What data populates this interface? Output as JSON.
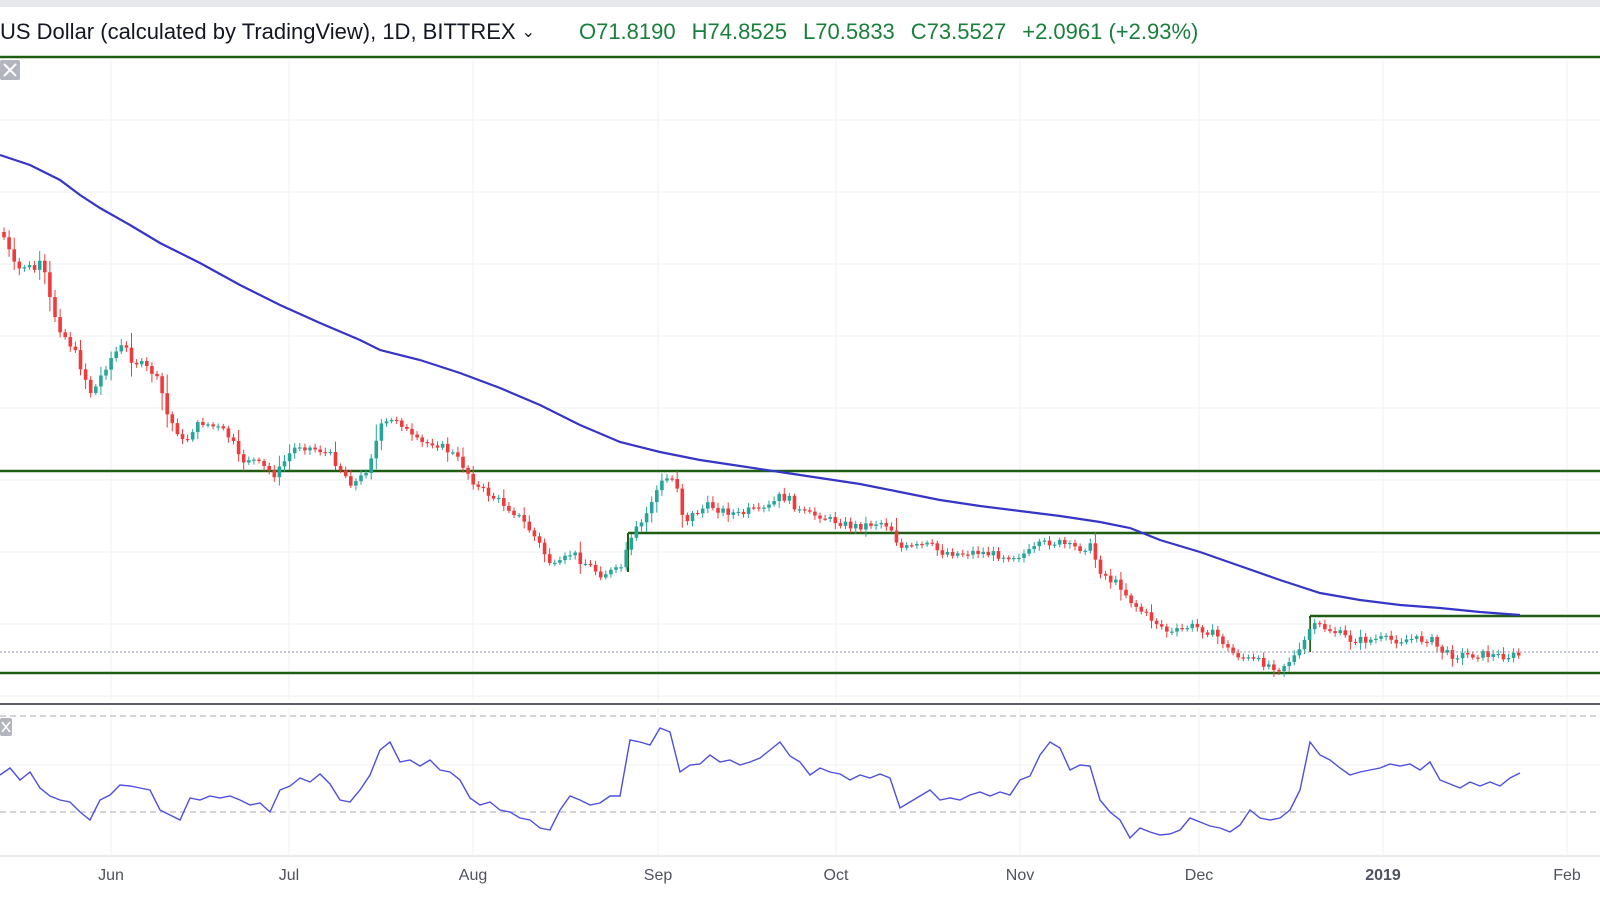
{
  "header": {
    "symbol_text": "US Dollar (calculated by TradingView), 1D, BITTREX",
    "caret_icon": "chevron-down-icon",
    "open": "O71.8190",
    "high": "H74.8525",
    "low": "L70.5833",
    "close": "C73.5527",
    "change": "+2.0961 (+2.93%)"
  },
  "chart_data": {
    "type": "candlestick",
    "title": "",
    "xlabel": "",
    "ylabel": "",
    "x_ticks": [
      "Jun",
      "Jul",
      "Aug",
      "Sep",
      "Oct",
      "Nov",
      "Dec",
      "2019",
      "Feb"
    ],
    "moving_average_color": "#3535c7",
    "horizontal_lines_color": "#1e5d12",
    "up_color": "#26a69a",
    "down_color": "#ef3b3b",
    "oscillator_color": "#4e4ee0",
    "close_path": [
      [
        0,
        232
      ],
      [
        6,
        240
      ],
      [
        12,
        262
      ],
      [
        18,
        270
      ],
      [
        26,
        265
      ],
      [
        34,
        270
      ],
      [
        42,
        262
      ],
      [
        50,
        300
      ],
      [
        58,
        325
      ],
      [
        66,
        338
      ],
      [
        74,
        350
      ],
      [
        84,
        375
      ],
      [
        92,
        395
      ],
      [
        100,
        378
      ],
      [
        108,
        362
      ],
      [
        116,
        352
      ],
      [
        124,
        345
      ],
      [
        132,
        360
      ],
      [
        142,
        365
      ],
      [
        152,
        372
      ],
      [
        160,
        385
      ],
      [
        168,
        418
      ],
      [
        176,
        428
      ],
      [
        184,
        445
      ],
      [
        192,
        430
      ],
      [
        202,
        422
      ],
      [
        212,
        426
      ],
      [
        222,
        430
      ],
      [
        232,
        440
      ],
      [
        240,
        462
      ],
      [
        250,
        458
      ],
      [
        260,
        465
      ],
      [
        268,
        470
      ],
      [
        276,
        475
      ],
      [
        284,
        462
      ],
      [
        292,
        450
      ],
      [
        300,
        445
      ],
      [
        310,
        448
      ],
      [
        320,
        450
      ],
      [
        330,
        455
      ],
      [
        340,
        468
      ],
      [
        350,
        482
      ],
      [
        358,
        482
      ],
      [
        366,
        470
      ],
      [
        374,
        448
      ],
      [
        382,
        425
      ],
      [
        390,
        422
      ],
      [
        398,
        418
      ],
      [
        406,
        430
      ],
      [
        414,
        440
      ],
      [
        424,
        444
      ],
      [
        434,
        442
      ],
      [
        444,
        448
      ],
      [
        454,
        455
      ],
      [
        462,
        464
      ],
      [
        470,
        476
      ],
      [
        478,
        488
      ],
      [
        486,
        492
      ],
      [
        494,
        498
      ],
      [
        504,
        504
      ],
      [
        514,
        512
      ],
      [
        522,
        520
      ],
      [
        532,
        533
      ],
      [
        540,
        545
      ],
      [
        548,
        560
      ],
      [
        556,
        568
      ],
      [
        564,
        560
      ],
      [
        572,
        552
      ],
      [
        580,
        560
      ],
      [
        590,
        566
      ],
      [
        600,
        574
      ],
      [
        610,
        572
      ],
      [
        620,
        570
      ],
      [
        628,
        548
      ],
      [
        636,
        530
      ],
      [
        644,
        520
      ],
      [
        652,
        500
      ],
      [
        660,
        484
      ],
      [
        668,
        478
      ],
      [
        676,
        480
      ],
      [
        684,
        522
      ],
      [
        692,
        515
      ],
      [
        700,
        510
      ],
      [
        710,
        505
      ],
      [
        720,
        510
      ],
      [
        730,
        512
      ],
      [
        740,
        515
      ],
      [
        750,
        510
      ],
      [
        760,
        512
      ],
      [
        770,
        506
      ],
      [
        780,
        496
      ],
      [
        790,
        500
      ],
      [
        800,
        512
      ],
      [
        810,
        515
      ],
      [
        820,
        515
      ],
      [
        830,
        520
      ],
      [
        840,
        522
      ],
      [
        850,
        526
      ],
      [
        860,
        526
      ],
      [
        870,
        524
      ],
      [
        880,
        522
      ],
      [
        890,
        526
      ],
      [
        900,
        548
      ],
      [
        910,
        548
      ],
      [
        920,
        546
      ],
      [
        930,
        545
      ],
      [
        940,
        552
      ],
      [
        950,
        552
      ],
      [
        960,
        554
      ],
      [
        970,
        552
      ],
      [
        980,
        552
      ],
      [
        990,
        554
      ],
      [
        1000,
        555
      ],
      [
        1010,
        556
      ],
      [
        1020,
        555
      ],
      [
        1030,
        552
      ],
      [
        1040,
        545
      ],
      [
        1050,
        542
      ],
      [
        1060,
        543
      ],
      [
        1070,
        547
      ],
      [
        1080,
        548
      ],
      [
        1090,
        546
      ],
      [
        1100,
        570
      ],
      [
        1110,
        580
      ],
      [
        1120,
        585
      ],
      [
        1130,
        600
      ],
      [
        1140,
        610
      ],
      [
        1150,
        618
      ],
      [
        1160,
        625
      ],
      [
        1170,
        634
      ],
      [
        1180,
        630
      ],
      [
        1190,
        626
      ],
      [
        1200,
        628
      ],
      [
        1210,
        632
      ],
      [
        1220,
        638
      ],
      [
        1230,
        652
      ],
      [
        1240,
        656
      ],
      [
        1250,
        660
      ],
      [
        1260,
        662
      ],
      [
        1270,
        665
      ],
      [
        1280,
        668
      ],
      [
        1290,
        660
      ],
      [
        1300,
        652
      ],
      [
        1310,
        628
      ],
      [
        1320,
        626
      ],
      [
        1330,
        630
      ],
      [
        1340,
        634
      ],
      [
        1350,
        640
      ],
      [
        1360,
        640
      ],
      [
        1370,
        640
      ],
      [
        1380,
        639
      ],
      [
        1390,
        640
      ],
      [
        1400,
        640
      ],
      [
        1410,
        639
      ],
      [
        1420,
        640
      ],
      [
        1430,
        638
      ],
      [
        1440,
        650
      ],
      [
        1450,
        655
      ],
      [
        1460,
        655
      ],
      [
        1470,
        655
      ],
      [
        1480,
        654
      ],
      [
        1490,
        655
      ],
      [
        1500,
        656
      ],
      [
        1510,
        656
      ],
      [
        1520,
        655
      ]
    ],
    "ma_path": [
      [
        0,
        155
      ],
      [
        30,
        165
      ],
      [
        60,
        180
      ],
      [
        80,
        195
      ],
      [
        100,
        208
      ],
      [
        130,
        225
      ],
      [
        160,
        243
      ],
      [
        200,
        263
      ],
      [
        240,
        285
      ],
      [
        280,
        305
      ],
      [
        320,
        323
      ],
      [
        360,
        340
      ],
      [
        380,
        350
      ],
      [
        420,
        360
      ],
      [
        460,
        373
      ],
      [
        500,
        388
      ],
      [
        540,
        405
      ],
      [
        580,
        425
      ],
      [
        620,
        442
      ],
      [
        660,
        452
      ],
      [
        700,
        460
      ],
      [
        740,
        466
      ],
      [
        780,
        472
      ],
      [
        820,
        478
      ],
      [
        860,
        484
      ],
      [
        900,
        492
      ],
      [
        940,
        500
      ],
      [
        980,
        506
      ],
      [
        1020,
        511
      ],
      [
        1060,
        516
      ],
      [
        1100,
        522
      ],
      [
        1130,
        528
      ],
      [
        1160,
        540
      ],
      [
        1200,
        552
      ],
      [
        1240,
        566
      ],
      [
        1280,
        580
      ],
      [
        1320,
        593
      ],
      [
        1360,
        600
      ],
      [
        1400,
        605
      ],
      [
        1440,
        608
      ],
      [
        1480,
        612
      ],
      [
        1520,
        615
      ]
    ],
    "oscillator_path": [
      [
        0,
        775
      ],
      [
        10,
        768
      ],
      [
        20,
        780
      ],
      [
        30,
        772
      ],
      [
        40,
        788
      ],
      [
        50,
        796
      ],
      [
        60,
        800
      ],
      [
        70,
        802
      ],
      [
        80,
        812
      ],
      [
        90,
        820
      ],
      [
        100,
        800
      ],
      [
        110,
        795
      ],
      [
        120,
        785
      ],
      [
        130,
        786
      ],
      [
        140,
        788
      ],
      [
        150,
        790
      ],
      [
        160,
        810
      ],
      [
        170,
        815
      ],
      [
        180,
        820
      ],
      [
        190,
        798
      ],
      [
        200,
        800
      ],
      [
        210,
        796
      ],
      [
        220,
        798
      ],
      [
        230,
        796
      ],
      [
        240,
        800
      ],
      [
        250,
        805
      ],
      [
        260,
        803
      ],
      [
        270,
        812
      ],
      [
        280,
        790
      ],
      [
        290,
        786
      ],
      [
        300,
        778
      ],
      [
        310,
        782
      ],
      [
        320,
        774
      ],
      [
        330,
        784
      ],
      [
        340,
        800
      ],
      [
        350,
        802
      ],
      [
        360,
        790
      ],
      [
        370,
        775
      ],
      [
        380,
        750
      ],
      [
        390,
        742
      ],
      [
        400,
        762
      ],
      [
        410,
        760
      ],
      [
        420,
        766
      ],
      [
        430,
        760
      ],
      [
        440,
        770
      ],
      [
        450,
        772
      ],
      [
        460,
        780
      ],
      [
        470,
        798
      ],
      [
        480,
        805
      ],
      [
        490,
        802
      ],
      [
        500,
        810
      ],
      [
        510,
        812
      ],
      [
        520,
        818
      ],
      [
        530,
        820
      ],
      [
        540,
        828
      ],
      [
        550,
        830
      ],
      [
        560,
        810
      ],
      [
        570,
        796
      ],
      [
        580,
        800
      ],
      [
        590,
        805
      ],
      [
        600,
        803
      ],
      [
        610,
        796
      ],
      [
        620,
        796
      ],
      [
        630,
        740
      ],
      [
        640,
        742
      ],
      [
        650,
        745
      ],
      [
        660,
        728
      ],
      [
        670,
        732
      ],
      [
        680,
        772
      ],
      [
        690,
        765
      ],
      [
        700,
        764
      ],
      [
        710,
        755
      ],
      [
        720,
        762
      ],
      [
        730,
        760
      ],
      [
        740,
        765
      ],
      [
        750,
        762
      ],
      [
        760,
        758
      ],
      [
        770,
        750
      ],
      [
        780,
        742
      ],
      [
        790,
        756
      ],
      [
        800,
        762
      ],
      [
        810,
        775
      ],
      [
        820,
        768
      ],
      [
        830,
        772
      ],
      [
        840,
        774
      ],
      [
        850,
        780
      ],
      [
        860,
        775
      ],
      [
        870,
        778
      ],
      [
        880,
        774
      ],
      [
        890,
        778
      ],
      [
        900,
        808
      ],
      [
        910,
        802
      ],
      [
        920,
        796
      ],
      [
        930,
        790
      ],
      [
        940,
        800
      ],
      [
        950,
        798
      ],
      [
        960,
        800
      ],
      [
        970,
        795
      ],
      [
        980,
        792
      ],
      [
        990,
        796
      ],
      [
        1000,
        792
      ],
      [
        1010,
        795
      ],
      [
        1020,
        780
      ],
      [
        1030,
        776
      ],
      [
        1040,
        755
      ],
      [
        1050,
        742
      ],
      [
        1060,
        748
      ],
      [
        1070,
        770
      ],
      [
        1080,
        765
      ],
      [
        1090,
        766
      ],
      [
        1100,
        800
      ],
      [
        1110,
        812
      ],
      [
        1120,
        820
      ],
      [
        1130,
        838
      ],
      [
        1140,
        828
      ],
      [
        1150,
        832
      ],
      [
        1160,
        835
      ],
      [
        1170,
        834
      ],
      [
        1180,
        830
      ],
      [
        1190,
        818
      ],
      [
        1200,
        822
      ],
      [
        1210,
        826
      ],
      [
        1220,
        828
      ],
      [
        1230,
        832
      ],
      [
        1240,
        825
      ],
      [
        1250,
        810
      ],
      [
        1260,
        818
      ],
      [
        1270,
        820
      ],
      [
        1280,
        818
      ],
      [
        1290,
        810
      ],
      [
        1300,
        790
      ],
      [
        1310,
        742
      ],
      [
        1320,
        755
      ],
      [
        1330,
        760
      ],
      [
        1340,
        768
      ],
      [
        1350,
        775
      ],
      [
        1360,
        772
      ],
      [
        1370,
        770
      ],
      [
        1380,
        768
      ],
      [
        1390,
        764
      ],
      [
        1400,
        766
      ],
      [
        1410,
        764
      ],
      [
        1420,
        770
      ],
      [
        1430,
        762
      ],
      [
        1440,
        780
      ],
      [
        1450,
        784
      ],
      [
        1460,
        788
      ],
      [
        1470,
        782
      ],
      [
        1480,
        786
      ],
      [
        1490,
        782
      ],
      [
        1500,
        786
      ],
      [
        1510,
        778
      ],
      [
        1520,
        773
      ]
    ]
  }
}
